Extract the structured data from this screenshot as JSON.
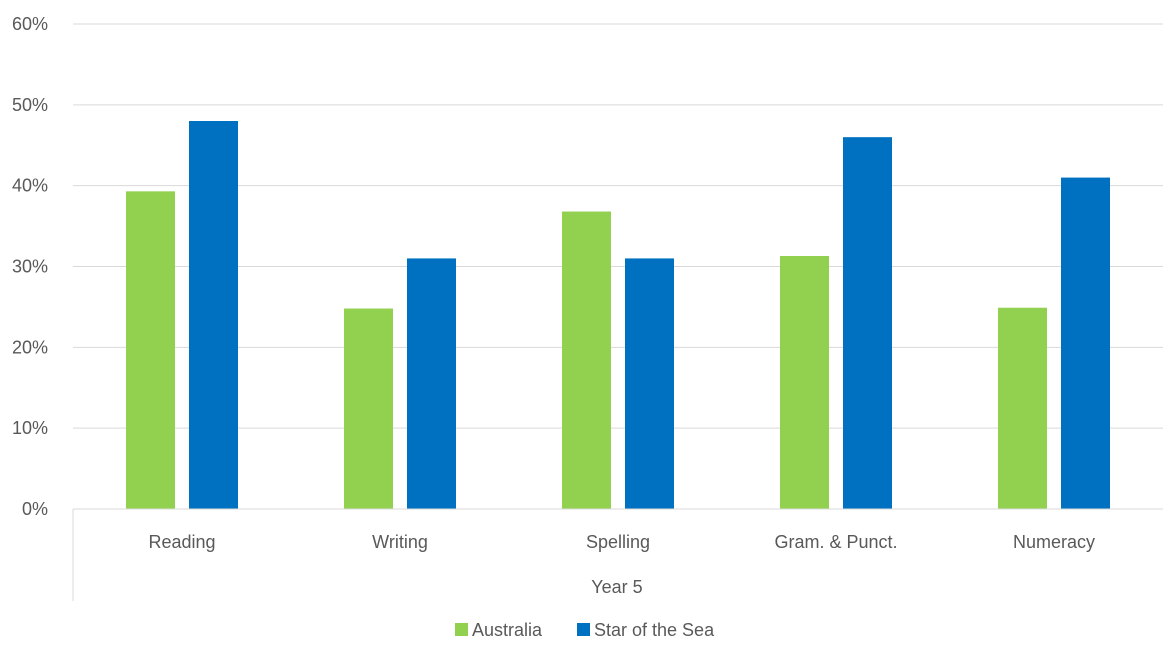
{
  "chart_data": {
    "type": "bar",
    "group_label": "Year 5",
    "categories": [
      "Reading",
      "Writing",
      "Spelling",
      "Gram. & Punct.",
      "Numeracy"
    ],
    "series": [
      {
        "name": "Australia",
        "color": "#92d050",
        "values": [
          39.3,
          24.8,
          36.8,
          31.3,
          24.9
        ]
      },
      {
        "name": "Star of the Sea",
        "color": "#0070c0",
        "values": [
          48.0,
          31.0,
          31.0,
          46.0,
          41.0
        ]
      }
    ],
    "ylim": [
      0,
      60
    ],
    "yticks": [
      "0%",
      "10%",
      "20%",
      "30%",
      "40%",
      "50%",
      "60%"
    ],
    "ytick_values": [
      0,
      10,
      20,
      30,
      40,
      50,
      60
    ],
    "grid": true,
    "legend_position": "bottom"
  }
}
